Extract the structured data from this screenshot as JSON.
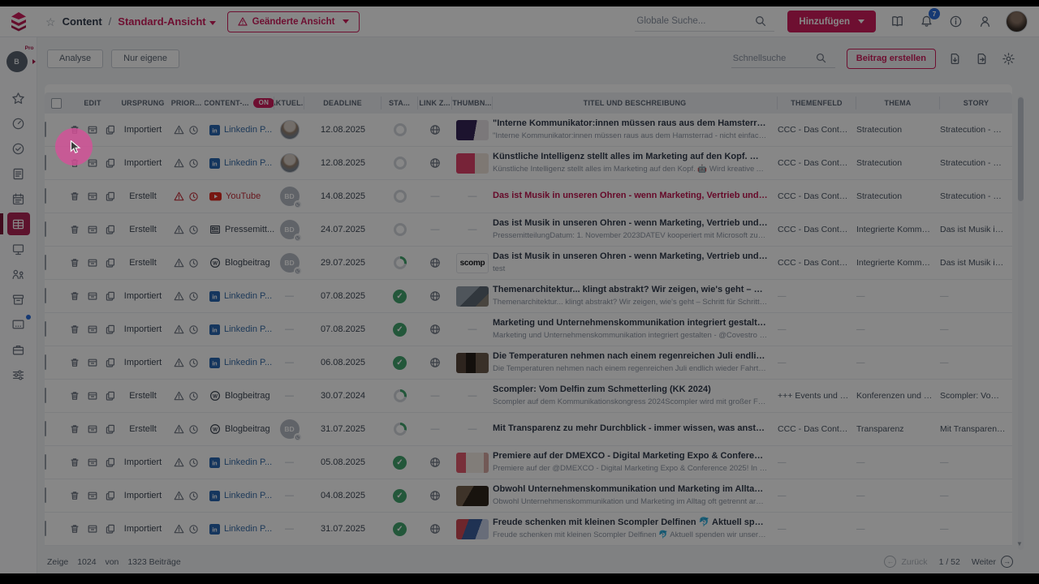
{
  "topbar": {
    "breadcrumb_section": "Content",
    "breadcrumb_sep": "/",
    "view_name": "Standard-Ansicht",
    "changed_view_label": "Geänderte Ansicht",
    "global_search_placeholder": "Globale Suche...",
    "add_button_label": "Hinzufügen",
    "notification_count": "7",
    "icons": [
      "scompler-logo",
      "favorite-star-icon",
      "search-icon",
      "academy-book-icon",
      "bell-icon",
      "help-circle-icon",
      "user-icon",
      "avatar"
    ]
  },
  "sidebar": {
    "pro_label": "Pro",
    "pro_initial": "B",
    "items": [
      {
        "icon": "star-icon",
        "name": "favorites"
      },
      {
        "icon": "gauge-icon",
        "name": "dashboard"
      },
      {
        "icon": "clock-check-icon",
        "name": "planning"
      },
      {
        "icon": "document-icon",
        "name": "content-docs"
      },
      {
        "icon": "calendar-icon",
        "name": "calendar"
      },
      {
        "icon": "table-grid-icon",
        "name": "content-list",
        "active": true
      },
      {
        "icon": "presentation-icon",
        "name": "presentation"
      },
      {
        "icon": "analytics-people-icon",
        "name": "analytics"
      },
      {
        "icon": "archive-icon",
        "name": "archive"
      },
      {
        "icon": "screen-dots-icon",
        "name": "community",
        "dot": true
      },
      {
        "icon": "briefcase-icon",
        "name": "assets"
      },
      {
        "icon": "sliders-icon",
        "name": "settings-filters"
      }
    ]
  },
  "toolbar": {
    "analyse_label": "Analyse",
    "own_only_label": "Nur eigene",
    "quick_search_placeholder": "Schnellsuche",
    "create_post_label": "Beitrag erstellen",
    "icons": [
      "import-icon",
      "export-icon",
      "gear-icon"
    ]
  },
  "colors": {
    "brand_pink": "#d01d5d",
    "status_green": "#43a56f",
    "linkedin_blue": "#2867b2",
    "youtube_red": "#e02b20",
    "badge_blue": "#2b6cd9"
  },
  "table": {
    "on_badge": "ON",
    "columns": [
      "",
      "EDIT",
      "URSPRUNG",
      "PRIOR...",
      "CONTENT-...",
      "AKTUEL...",
      "DEADLINE",
      "STA...",
      "LINK Z...",
      "THUMBN...",
      "TITEL UND BESCHREIBUNG",
      "THEMENFELD",
      "THEMA",
      "STORY"
    ],
    "rows": [
      {
        "ursprung": "Importiert",
        "prio": "gray",
        "type": "linkedin",
        "type_label": "Linkedin P...",
        "avatar": "photo",
        "deadline": "12.08.2025",
        "status": "empty",
        "link": "globe",
        "thumb": "purple",
        "title": "\"Interne Kommunikator:innen müssen raus aus dem Hamsterrad - nicht einfach ...",
        "title_accent": false,
        "desc": "\"Interne Kommunikator:innen müssen raus aus dem Hamsterrad - nicht einfach alles umset...",
        "themenfeld": "CCC - Das Content Co...",
        "thema": "Stratecution",
        "story": "Stratecution - wie Stra"
      },
      {
        "ursprung": "Importiert",
        "prio": "gray",
        "type": "linkedin",
        "type_label": "Linkedin P...",
        "avatar": "photo",
        "deadline": "12.08.2025",
        "status": "empty",
        "link": "globe",
        "thumb": "pinkcard",
        "title": "Künstliche Intelligenz stellt alles im Marketing auf den Kopf. 🤖 Wird kreative Arb...",
        "title_accent": false,
        "desc": "Künstliche Intelligenz stellt alles im Marketing auf den Kopf. 🤖 Wird kreative Arbeit ersetzt - ...",
        "themenfeld": "CCC - Das Content Co...",
        "thema": "Stratecution",
        "story": "Stratecution - wie Stra"
      },
      {
        "ursprung": "Erstellt",
        "prio": "red",
        "type": "youtube",
        "type_label": "YouTube",
        "avatar": "initials",
        "deadline": "14.08.2025",
        "status": "empty",
        "link": "none",
        "thumb": "none",
        "title": "Das ist Musik in unseren Ohren - wenn Marketing, Vertrieb und Corporate Comm...",
        "title_accent": true,
        "desc": "",
        "themenfeld": "CCC - Das Content Co...",
        "thema": "Stratecution",
        "story": "Stratecution - wie Stra"
      },
      {
        "ursprung": "Erstellt",
        "prio": "gray",
        "type": "press",
        "type_label": "Pressemitt...",
        "avatar": "initials",
        "deadline": "24.07.2025",
        "status": "empty",
        "link": "none",
        "thumb": "none",
        "title": "Das ist Musik in unseren Ohren - wenn Marketing, Vertrieb und Corporate Comm...",
        "title_accent": false,
        "desc": "PressemitteilungDatum: 1. November 2023DATEV kooperiert mit Microsoft zur Optimierung ...",
        "themenfeld": "CCC - Das Content Co...",
        "thema": "Integrierte Kommunik...",
        "story": "Das ist Musik in unser"
      },
      {
        "ursprung": "Erstellt",
        "prio": "gray",
        "type": "blog",
        "type_label": "Blogbeitrag",
        "avatar": "initials",
        "deadline": "29.07.2025",
        "status": "partial",
        "link": "globe",
        "thumb": "scomp",
        "thumb_text": "scomp",
        "title": "Das ist Musik in unseren Ohren - wenn Marketing, Vertrieb und Corporate Comm...",
        "title_accent": false,
        "desc": "test",
        "themenfeld": "CCC - Das Content Co...",
        "thema": "Integrierte Kommunik...",
        "story": "Das ist Musik in unser"
      },
      {
        "ursprung": "Importiert",
        "prio": "gray",
        "type": "linkedin",
        "type_label": "Linkedin P...",
        "avatar": "none",
        "deadline": "07.08.2025",
        "status": "done",
        "link": "globe",
        "thumb": "grayphoto",
        "title": "Themenarchitektur... klingt abstrakt? Wir zeigen, wie's geht – Schritt für Schritt. D...",
        "title_accent": false,
        "desc": "Themenarchitektur... klingt abstrakt? Wir zeigen, wie's geht – Schritt für Schritt. Denn Kommu...",
        "themenfeld": "",
        "thema": "",
        "story": ""
      },
      {
        "ursprung": "Importiert",
        "prio": "gray",
        "type": "linkedin",
        "type_label": "Linkedin P...",
        "avatar": "none",
        "deadline": "07.08.2025",
        "status": "done",
        "link": "globe",
        "thumb": "none",
        "title": "Marketing und Unternehmenskommunikation integriert gestalten - Covestro hat ...",
        "title_accent": false,
        "desc": "Marketing und Unternehmenskommunikation integriert gestalten - @Covestro hat es gesch...",
        "themenfeld": "",
        "thema": "",
        "story": ""
      },
      {
        "ursprung": "Importiert",
        "prio": "gray",
        "type": "linkedin",
        "type_label": "Linkedin P...",
        "avatar": "none",
        "deadline": "06.08.2025",
        "status": "done",
        "link": "globe",
        "thumb": "bottles",
        "title": "Die Temperaturen nehmen nach einem regenreichen Juli endlich wieder Fahrt au...",
        "title_accent": false,
        "desc": "Die Temperaturen nehmen nach einem regenreichen Juli endlich wieder Fahrt auf. Zum Glüc...",
        "themenfeld": "",
        "thema": "",
        "story": ""
      },
      {
        "ursprung": "Erstellt",
        "prio": "gray",
        "type": "blog",
        "type_label": "Blogbeitrag",
        "avatar": "none",
        "deadline": "30.07.2024",
        "status": "partial",
        "link": "none",
        "thumb": "none",
        "title": "Scompler: Vom Delfin zum Schmetterling (KK 2024)",
        "title_accent": false,
        "desc": "Scompler auf dem Kommunikationskongress 2024Scompler wird mit großer Freude am Ko...",
        "themenfeld": "+++ Events und Kamp...",
        "thema": "Konferenzen und Mes...",
        "story": "Scompler: Vom Delfin"
      },
      {
        "ursprung": "Erstellt",
        "prio": "gray",
        "type": "blog",
        "type_label": "Blogbeitrag",
        "avatar": "initials",
        "deadline": "31.07.2025",
        "status": "partial",
        "link": "none",
        "thumb": "none",
        "title": "Mit Transparenz zu mehr Durchblick - immer wissen, was ansteht",
        "title_accent": false,
        "desc": "",
        "themenfeld": "CCC - Das Content Co...",
        "thema": "Transparenz",
        "story": "Mit Transparenz zu m"
      },
      {
        "ursprung": "Importiert",
        "prio": "gray",
        "type": "linkedin",
        "type_label": "Linkedin P...",
        "avatar": "none",
        "deadline": "05.08.2025",
        "status": "done",
        "link": "globe",
        "thumb": "redcard",
        "title": "Premiere auf der DMEXCO - Digital Marketing Expo & Conference 2025! In diesem ...",
        "title_accent": false,
        "desc": "Premiere auf der @DMEXCO - Digital Marketing Expo & Conference 2025! In diesem Jahr sin...",
        "themenfeld": "",
        "thema": "",
        "story": ""
      },
      {
        "ursprung": "Importiert",
        "prio": "gray",
        "type": "linkedin",
        "type_label": "Linkedin P...",
        "avatar": "none",
        "deadline": "04.08.2025",
        "status": "done",
        "link": "globe",
        "thumb": "darkperson",
        "title": "Obwohl Unternehmenskommunikation und Marketing im Alltag oft getrennt arb...",
        "title_accent": false,
        "desc": "Obwohl Unternehmenskommunikation und Marketing im Alltag oft getrennt arbeiten, kämp...",
        "themenfeld": "",
        "thema": "",
        "story": ""
      },
      {
        "ursprung": "Importiert",
        "prio": "gray",
        "type": "linkedin",
        "type_label": "Linkedin P...",
        "avatar": "none",
        "deadline": "31.07.2025",
        "status": "done",
        "link": "globe",
        "thumb": "colorful",
        "title": "Freude schenken mit kleinen Scompler Delfinen 🐬 Aktuell spenden wir unsere Pl...",
        "title_accent": false,
        "desc": "Freude schenken mit kleinen Scompler Delfinen 🐬 Aktuell spenden wir unsere Plüschdelfin...",
        "themenfeld": "",
        "thema": "",
        "story": ""
      }
    ],
    "avatar_initials": "BD"
  },
  "footer": {
    "showing_label": "Zeige",
    "shown_count": "1024",
    "of_label": "von",
    "total_label": "1323 Beiträge",
    "back_label": "Zurück",
    "page_indicator": "1 / 52",
    "next_label": "Weiter"
  }
}
